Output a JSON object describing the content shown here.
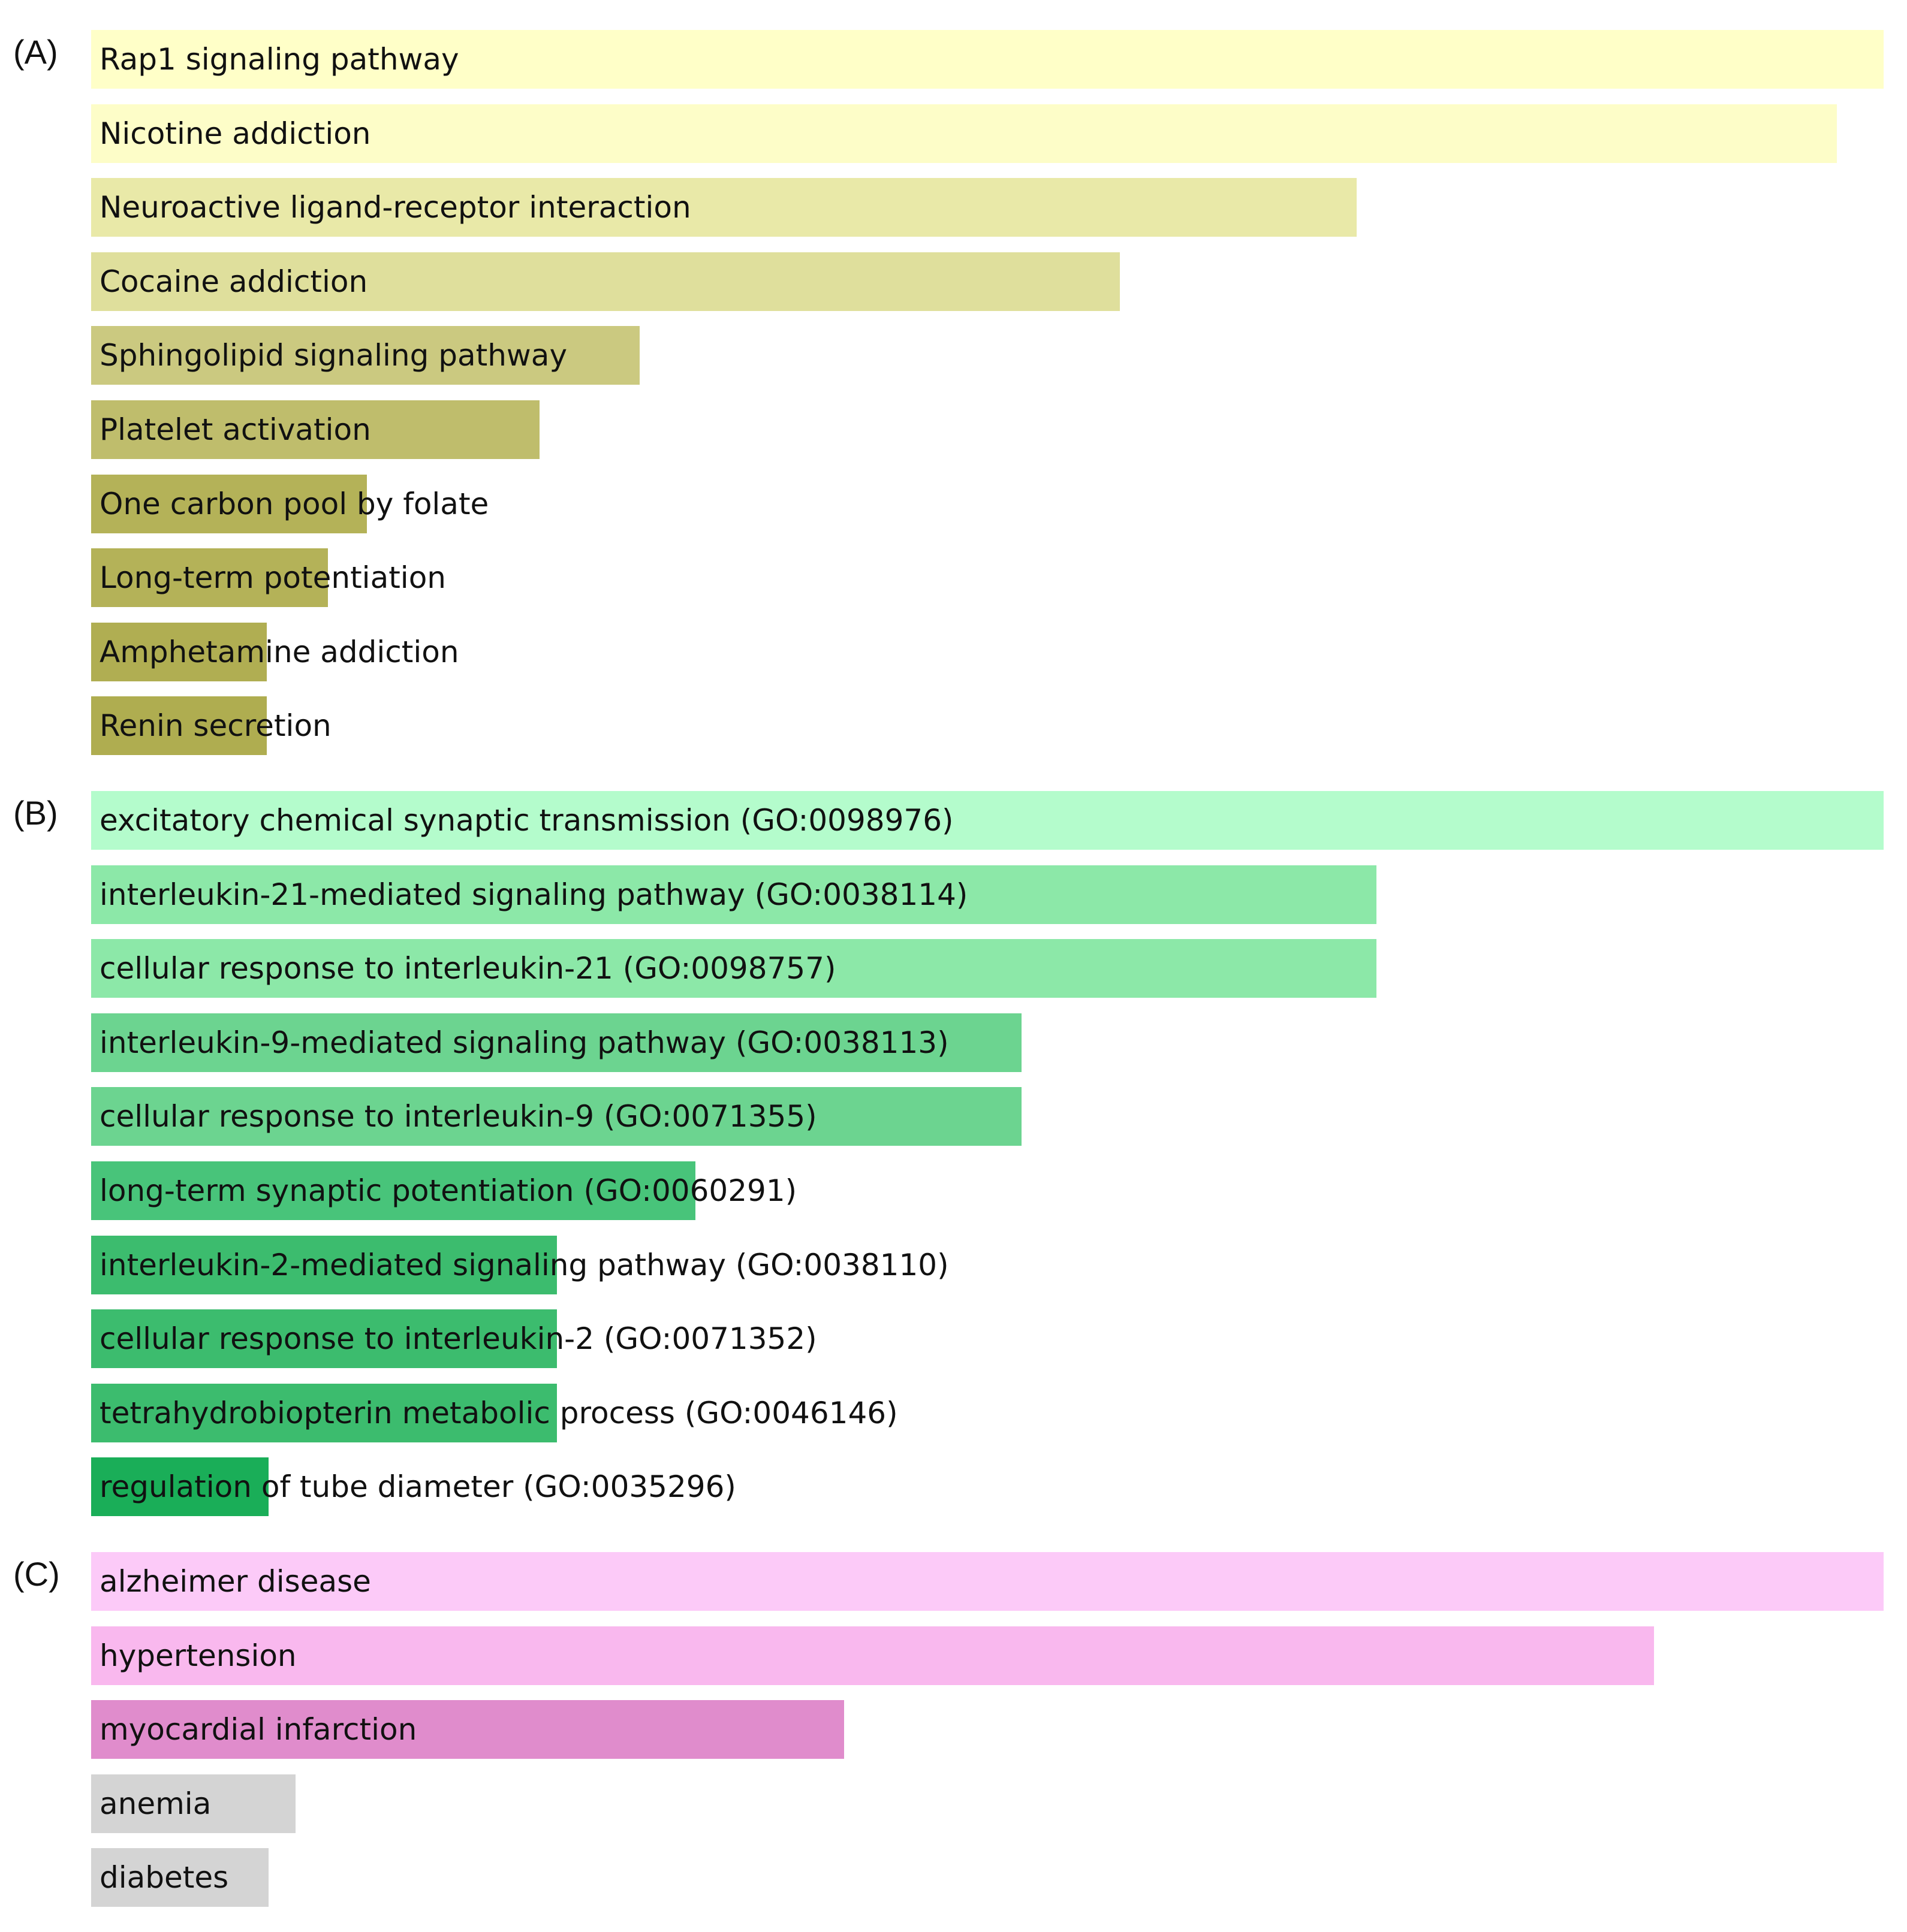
{
  "chart_data": [
    {
      "type": "bar",
      "orientation": "horizontal",
      "panel_label": "(A)",
      "categories": [
        "Rap1 signaling pathway",
        "Nicotine addiction",
        "Neuroactive ligand-receptor interaction",
        "Cocaine addiction",
        "Sphingolipid signaling pathway",
        "Platelet activation",
        "One carbon pool by folate",
        "Long-term potentiation",
        "Amphetamine addiction",
        "Renin secretion"
      ],
      "values": [
        1.0,
        0.974,
        0.706,
        0.574,
        0.306,
        0.25,
        0.154,
        0.132,
        0.098,
        0.098
      ],
      "colors": [
        "#ffffc8",
        "#fdfdc8",
        "#e9e9a8",
        "#dfdf9c",
        "#cbc980",
        "#bfbd6c",
        "#b4b258",
        "#b4b258",
        "#b0ae52",
        "#afad50"
      ],
      "grid": false,
      "legend": "none"
    },
    {
      "type": "bar",
      "orientation": "horizontal",
      "panel_label": "(B)",
      "categories": [
        "excitatory chemical synaptic transmission (GO:0098976)",
        "interleukin-21-mediated signaling pathway (GO:0038114)",
        "cellular response to interleukin-21 (GO:0098757)",
        "interleukin-9-mediated signaling pathway (GO:0038113)",
        "cellular response to interleukin-9 (GO:0071355)",
        "long-term synaptic potentiation (GO:0060291)",
        "interleukin-2-mediated signaling pathway (GO:0038110)",
        "cellular response to interleukin-2 (GO:0071352)",
        "tetrahydrobiopterin metabolic process (GO:0046146)",
        "regulation of tube diameter (GO:0035296)"
      ],
      "values": [
        1.0,
        0.717,
        0.717,
        0.519,
        0.519,
        0.337,
        0.26,
        0.26,
        0.26,
        0.099
      ],
      "colors": [
        "#b4fccc",
        "#8ce8a8",
        "#8ce8a8",
        "#6cd490",
        "#6cd490",
        "#48c47a",
        "#3cbc6e",
        "#3cbc6e",
        "#3cbc6e",
        "#1aae58"
      ],
      "grid": false,
      "legend": "none"
    },
    {
      "type": "bar",
      "orientation": "horizontal",
      "panel_label": "(C)",
      "categories": [
        "alzheimer disease",
        "hypertension",
        "myocardial infarction",
        "anemia",
        "diabetes"
      ],
      "values": [
        1.0,
        0.872,
        0.42,
        0.114,
        0.099
      ],
      "colors": [
        "#fccaf8",
        "#f9b8ee",
        "#e08ccc",
        "#d4d4d4",
        "#d4d4d4"
      ],
      "grid": false,
      "legend": "none"
    }
  ]
}
